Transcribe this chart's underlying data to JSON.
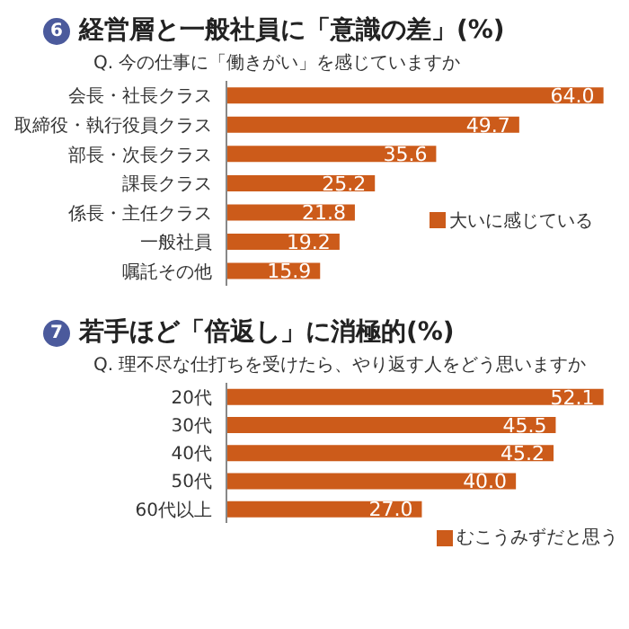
{
  "chart_data": [
    {
      "type": "bar",
      "orientation": "horizontal",
      "title": "経営層と一般社員に「意識の差」(%)",
      "subtitle": "Q. 今の仕事に「働きがい」を感じていますか",
      "annotations": [
        "6"
      ],
      "categories": [
        "会長・社長クラス",
        "取締役・執行役員クラス",
        "部長・次長クラス",
        "課長クラス",
        "係長・主任クラス",
        "一般社員",
        "嘱託その他"
      ],
      "series": [
        {
          "name": "大いに感じている",
          "color": "#cc5b1a",
          "values": [
            64.0,
            49.7,
            35.6,
            25.2,
            21.8,
            19.2,
            15.9
          ],
          "value_labels": [
            "64.0",
            "49.7",
            "35.6",
            "25.2",
            "21.8",
            "19.2",
            "15.9"
          ]
        }
      ],
      "legend": "right",
      "tick_labels": "y"
    },
    {
      "type": "bar",
      "orientation": "horizontal",
      "title": "若手ほど「倍返し」に消極的(%)",
      "subtitle": "Q. 理不尽な仕打ちを受けたら、やり返す人をどう思いますか",
      "annotations": [
        "7"
      ],
      "categories": [
        "20代",
        "30代",
        "40代",
        "50代",
        "60代以上"
      ],
      "series": [
        {
          "name": "むこうみずだと思う",
          "color": "#cc5b1a",
          "values": [
            52.1,
            45.5,
            45.2,
            40.0,
            27.0
          ],
          "value_labels": [
            "52.1",
            "45.5",
            "45.2",
            "40.0",
            "27.0"
          ]
        }
      ],
      "legend": "bottom right",
      "tick_labels": "y"
    }
  ]
}
